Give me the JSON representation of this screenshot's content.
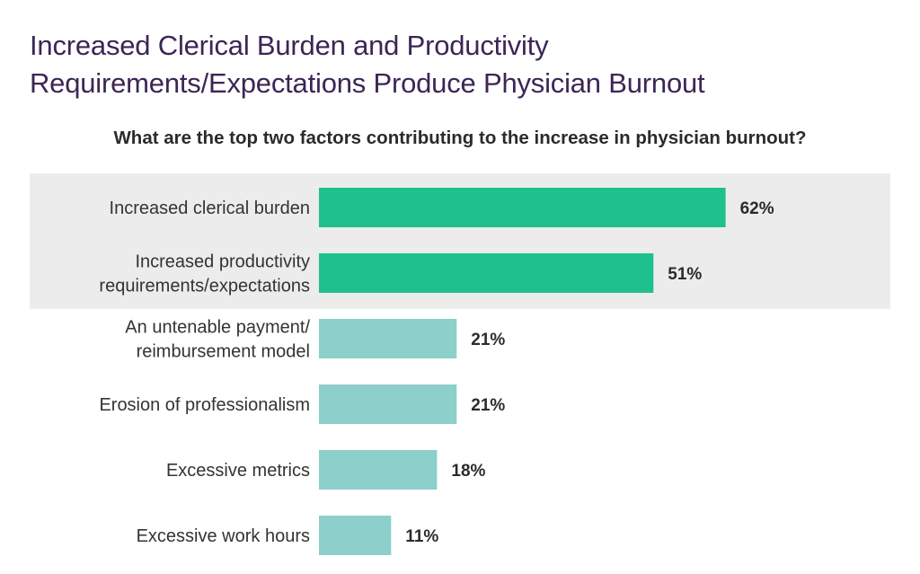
{
  "header": {
    "title_line1": "Increased Clerical Burden and Productivity",
    "title_line2": "Requirements/Expectations Produce Physician Burnout",
    "subtitle": "What are the top two factors contributing to the increase in physician burnout?"
  },
  "chart_data": {
    "type": "bar",
    "orientation": "horizontal",
    "title": "Increased Clerical Burden and Productivity Requirements/Expectations Produce Physician Burnout",
    "subtitle": "What are the top two factors contributing to the increase in physician burnout?",
    "categories": [
      [
        "Increased clerical burden"
      ],
      [
        "Increased productivity",
        "requirements/expectations"
      ],
      [
        "An untenable payment/",
        "reimbursement model"
      ],
      [
        "Erosion of professionalism"
      ],
      [
        "Excessive metrics"
      ],
      [
        "Excessive work hours"
      ]
    ],
    "values": [
      62,
      51,
      21,
      21,
      18,
      11
    ],
    "value_labels": [
      "62%",
      "51%",
      "21%",
      "21%",
      "18%",
      "11%"
    ],
    "highlighted": [
      true,
      true,
      false,
      false,
      false,
      false
    ],
    "unit": "%",
    "grid": false,
    "legend": "none",
    "colors": {
      "highlight_bar": "#1fc08e",
      "normal_bar": "#8ccfcb",
      "highlight_band": "#ececec",
      "title": "#3d2555"
    }
  }
}
